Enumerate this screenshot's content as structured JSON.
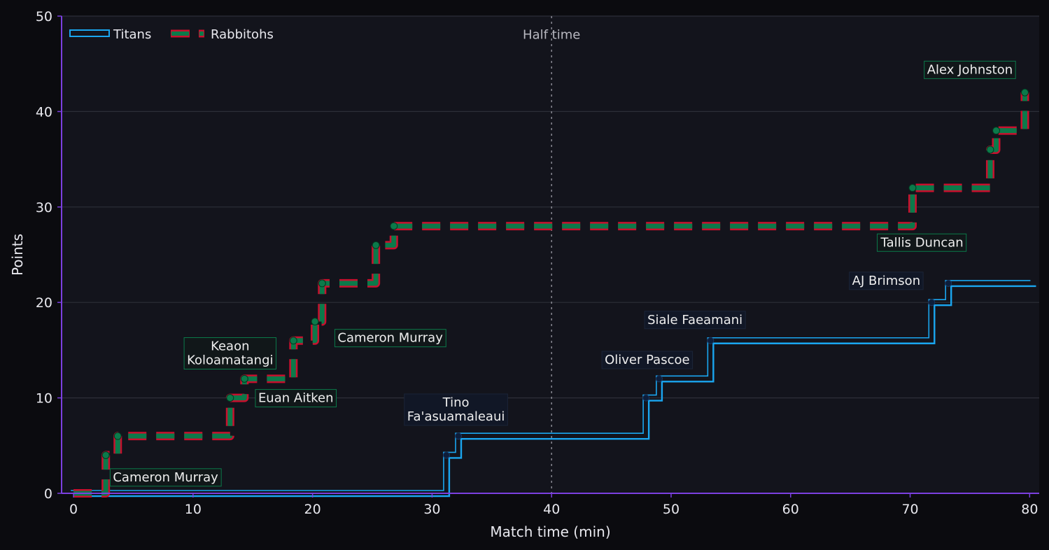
{
  "chart_data": {
    "type": "line",
    "step": "post",
    "xlabel": "Match time (min)",
    "ylabel": "Points",
    "xlim": [
      -1,
      80.8
    ],
    "ylim": [
      0,
      50
    ],
    "x_ticks": [
      0,
      10,
      20,
      30,
      40,
      50,
      60,
      70,
      80
    ],
    "y_ticks": [
      0,
      10,
      20,
      30,
      40,
      50
    ],
    "grid": "horizontal",
    "legend_position": "top-left",
    "reference_line": {
      "x": 40,
      "label": "Half time"
    },
    "colors": {
      "background": "#13141c",
      "page": "#0b0b0f",
      "axis": "#7b3fe0",
      "grid": "#2d2f38",
      "titans": "#1aa6f0",
      "rabbitohs_fill": "#0b7a4a",
      "rabbitohs_edge": "#c8102e"
    },
    "series": [
      {
        "name": "Titans",
        "style": "solid-double",
        "x": [
          0,
          31.2,
          32.2,
          47.9,
          49.0,
          53.3,
          71.8,
          73.2,
          80.3
        ],
        "y": [
          0,
          4,
          6,
          10,
          12,
          16,
          20,
          22,
          22
        ],
        "annotations": [
          {
            "text": "Tino\nFa'asuamaleaui",
            "x": 32.0,
            "y": 8.8
          },
          {
            "text": "Oliver Pascoe",
            "x": 48.0,
            "y": 14.0
          },
          {
            "text": "Siale Faeamani",
            "x": 52.0,
            "y": 18.2
          },
          {
            "text": "AJ Brimson",
            "x": 68.0,
            "y": 22.3
          }
        ]
      },
      {
        "name": "Rabbitohs",
        "style": "dashed",
        "x": [
          0,
          2.7,
          3.7,
          13.1,
          14.3,
          18.4,
          20.2,
          20.8,
          25.3,
          26.8,
          70.2,
          76.7,
          77.2,
          79.6
        ],
        "y": [
          0,
          4,
          6,
          10,
          12,
          16,
          18,
          22,
          26,
          28,
          32,
          36,
          38,
          42
        ],
        "annotations": [
          {
            "text": "Cameron Murray",
            "x": 7.7,
            "y": 1.7
          },
          {
            "text": "Euan Aitken",
            "x": 18.6,
            "y": 10.0
          },
          {
            "text": "Keaon\nKoloamatangi",
            "x": 13.1,
            "y": 14.7
          },
          {
            "text": "Cameron Murray",
            "x": 26.5,
            "y": 16.3
          },
          {
            "text": "Tallis Duncan",
            "x": 71.0,
            "y": 26.3
          },
          {
            "text": "Alex Johnston",
            "x": 75.0,
            "y": 44.4
          }
        ]
      }
    ]
  }
}
